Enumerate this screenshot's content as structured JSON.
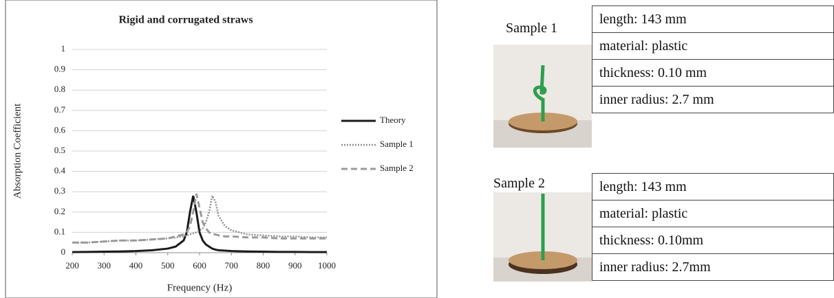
{
  "chart_data": {
    "type": "line",
    "title": "Rigid and corrugated straws",
    "x_label": "Frequency (Hz)",
    "y_label": "Absorption Coefficient",
    "x": [
      200,
      250,
      300,
      350,
      400,
      450,
      500,
      525,
      550,
      560,
      570,
      580,
      590,
      600,
      610,
      620,
      630,
      640,
      650,
      660,
      680,
      700,
      750,
      800,
      850,
      900,
      950,
      1000
    ],
    "series": [
      {
        "name": "Theory",
        "color": "#1a1a1a",
        "line_style": "solid",
        "values": [
          0.003,
          0.004,
          0.005,
          0.006,
          0.008,
          0.012,
          0.02,
          0.03,
          0.06,
          0.1,
          0.2,
          0.28,
          0.2,
          0.1,
          0.06,
          0.04,
          0.03,
          0.02,
          0.015,
          0.012,
          0.01,
          0.008,
          0.006,
          0.005,
          0.004,
          0.004,
          0.003,
          0.003
        ]
      },
      {
        "name": "Sample 1",
        "color": "#8c8c8c",
        "line_style": "dotted",
        "values": [
          0.05,
          0.05,
          0.055,
          0.06,
          0.06,
          0.065,
          0.07,
          0.075,
          0.08,
          0.085,
          0.09,
          0.095,
          0.1,
          0.11,
          0.12,
          0.15,
          0.2,
          0.28,
          0.25,
          0.18,
          0.13,
          0.11,
          0.09,
          0.085,
          0.08,
          0.08,
          0.075,
          0.075
        ]
      },
      {
        "name": "Sample 2",
        "color": "#9a9a9a",
        "line_style": "dashed",
        "values": [
          0.05,
          0.05,
          0.055,
          0.06,
          0.06,
          0.065,
          0.07,
          0.08,
          0.09,
          0.1,
          0.13,
          0.2,
          0.29,
          0.22,
          0.15,
          0.12,
          0.1,
          0.09,
          0.09,
          0.085,
          0.08,
          0.08,
          0.075,
          0.075,
          0.07,
          0.07,
          0.07,
          0.07
        ]
      }
    ],
    "xlim": [
      200,
      1000
    ],
    "xticks": [
      200,
      300,
      400,
      500,
      600,
      700,
      800,
      900,
      1000
    ],
    "ylim": [
      0,
      1
    ],
    "yticks": [
      0,
      0.1,
      0.2,
      0.3,
      0.4,
      0.5,
      0.6,
      0.7,
      0.8,
      0.9,
      1
    ],
    "grid": true,
    "legend": "right"
  },
  "samples": [
    {
      "label": "Sample 1",
      "rows": [
        "length: 143 mm",
        "material: plastic",
        "thickness: 0.10 mm",
        "inner radius: 2.7 mm"
      ]
    },
    {
      "label": "Sample 2",
      "rows": [
        "length: 143 mm",
        "material: plastic",
        "thickness: 0.10mm",
        "inner radius: 2.7mm"
      ]
    }
  ]
}
